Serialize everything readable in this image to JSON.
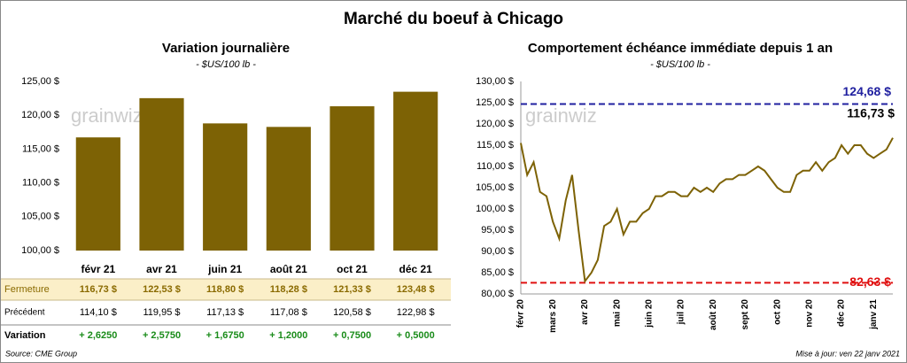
{
  "title": "Marché du boeuf à Chicago",
  "chart_data": [
    {
      "type": "bar",
      "title": "Variation  journalière",
      "subtitle": "- $US/100 lb -",
      "watermark": "grainwiz",
      "categories": [
        "févr 21",
        "avr 21",
        "juin 21",
        "août 21",
        "oct 21",
        "déc 21"
      ],
      "values": [
        116.73,
        122.53,
        118.8,
        118.28,
        121.33,
        123.48
      ],
      "color": "#7d6205",
      "ylim": [
        100,
        125
      ],
      "yticks": [
        {
          "value": 100,
          "label": "100,00 $"
        },
        {
          "value": 105,
          "label": "105,00 $"
        },
        {
          "value": 110,
          "label": "110,00 $"
        },
        {
          "value": 115,
          "label": "115,00 $"
        },
        {
          "value": 120,
          "label": "120,00 $"
        },
        {
          "value": 125,
          "label": "125,00 $"
        }
      ],
      "grid": false
    },
    {
      "type": "line",
      "title": "Comportement  échéance immédiate depuis 1 an",
      "subtitle": "- $US/100 lb -",
      "watermark": "grainwiz",
      "categories": [
        "févr 20",
        null,
        null,
        null,
        null,
        "mars 20",
        null,
        null,
        null,
        null,
        "avr 20",
        null,
        null,
        null,
        null,
        "mai 20",
        null,
        null,
        null,
        null,
        "juin 20",
        null,
        null,
        null,
        null,
        "juil 20",
        null,
        null,
        null,
        null,
        "août 20",
        null,
        null,
        null,
        null,
        "sept 20",
        null,
        null,
        null,
        null,
        "oct 20",
        null,
        null,
        null,
        null,
        "nov 20",
        null,
        null,
        null,
        null,
        "déc 20",
        null,
        null,
        null,
        null,
        "janv 21",
        null,
        null,
        null
      ],
      "series": [
        {
          "color": "#7d6205",
          "values": [
            115.5,
            108,
            111,
            104,
            103,
            97,
            93,
            102,
            108,
            95,
            83,
            85,
            88,
            96,
            97,
            100,
            94,
            97,
            97,
            99,
            100,
            103,
            103,
            104,
            104,
            103,
            103,
            105,
            104,
            105,
            104,
            106,
            107,
            107,
            108,
            108,
            109,
            110,
            109,
            107,
            105,
            104,
            104,
            108,
            109,
            109,
            111,
            109,
            111,
            112,
            115,
            113,
            115,
            115,
            113,
            112,
            113,
            114,
            116.73
          ],
          "value_labels": [
            null,
            null,
            null,
            null,
            null,
            null,
            null,
            null,
            null,
            null,
            null,
            null,
            null,
            null,
            null,
            null,
            null,
            null,
            null,
            null,
            null,
            null,
            null,
            null,
            null,
            null,
            null,
            null,
            null,
            null,
            null,
            null,
            null,
            null,
            null,
            null,
            null,
            null,
            null,
            null,
            null,
            null,
            null,
            null,
            null,
            null,
            null,
            null,
            null,
            null,
            null,
            null,
            null,
            null,
            null,
            null,
            null,
            null,
            "116,73 $"
          ]
        }
      ],
      "reference_lines": [
        {
          "value": 124.68,
          "label": "124,68 $",
          "color": "#2020a0"
        },
        {
          "value": 82.63,
          "label": "82,63 $",
          "color": "#e01010"
        }
      ],
      "ylim": [
        80,
        130
      ],
      "yticks": [
        {
          "value": 80,
          "label": "80,00 $"
        },
        {
          "value": 85,
          "label": "85,00 $"
        },
        {
          "value": 90,
          "label": "90,00 $"
        },
        {
          "value": 95,
          "label": "95,00 $"
        },
        {
          "value": 100,
          "label": "100,00 $"
        },
        {
          "value": 105,
          "label": "105,00 $"
        },
        {
          "value": 110,
          "label": "110,00 $"
        },
        {
          "value": 115,
          "label": "115,00 $"
        },
        {
          "value": 120,
          "label": "120,00 $"
        },
        {
          "value": 125,
          "label": "125,00 $"
        },
        {
          "value": 130,
          "label": "130,00 $"
        }
      ],
      "grid": false
    }
  ],
  "table": {
    "rows": [
      [
        "Fermeture",
        "116,73  $",
        "122,53  $",
        "118,80  $",
        "118,28  $",
        "121,33  $",
        "123,48  $"
      ],
      [
        "Précédent",
        "114,10  $",
        "119,95  $",
        "117,13  $",
        "117,08  $",
        "120,58  $",
        "122,98  $"
      ],
      [
        "Variation",
        "+ 2,6250",
        "+ 2,5750",
        "+ 1,6750",
        "+ 1,2000",
        "+ 0,7500",
        "+ 0,5000"
      ]
    ]
  },
  "footer": {
    "source": "Source: CME Group",
    "updated": "Mise à jour: ven 22 janv 2021"
  }
}
